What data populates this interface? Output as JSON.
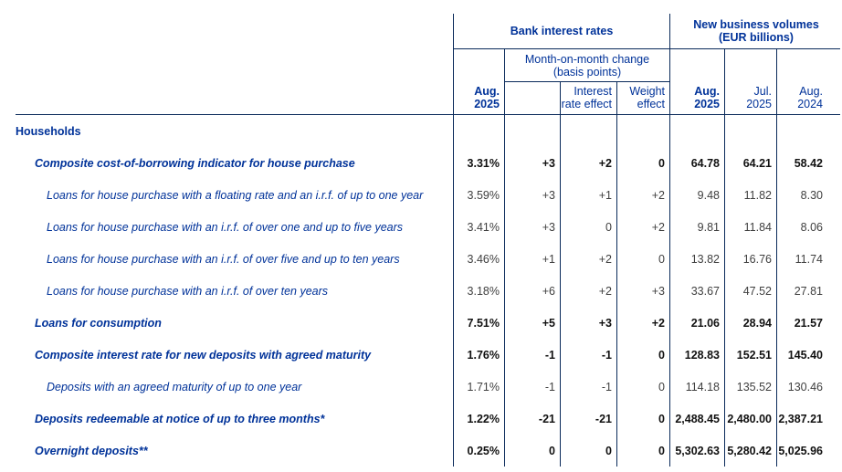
{
  "table": {
    "groups": {
      "bank_rates": "Bank interest rates",
      "volumes_line1": "New business volumes",
      "volumes_line2": "(EUR billions)",
      "mom_line1": "Month-on-month change",
      "mom_line2": "(basis points)"
    },
    "column_headers": {
      "rate_aug25": {
        "line1": "Aug.",
        "line2": "2025"
      },
      "interest_effect": {
        "line1": "Interest",
        "line2": "rate effect"
      },
      "weight_effect": {
        "line1": "Weight",
        "line2": "effect"
      },
      "vol_aug25": {
        "line1": "Aug.",
        "line2": "2025"
      },
      "vol_jul25": {
        "line1": "Jul.",
        "line2": "2025"
      },
      "vol_aug24": {
        "line1": "Aug.",
        "line2": "2024"
      }
    },
    "rows": [
      {
        "label": "Households",
        "indent": 0,
        "value_bold": false,
        "values": []
      },
      {
        "label": "Composite cost-of-borrowing indicator for house purchase",
        "indent": 1,
        "value_bold": true,
        "values": [
          "3.31%",
          "+3",
          "+2",
          "0",
          "64.78",
          "64.21",
          "58.42"
        ]
      },
      {
        "label": "Loans for house purchase with a floating rate and an i.r.f. of up to one year",
        "indent": 2,
        "value_bold": false,
        "values": [
          "3.59%",
          "+3",
          "+1",
          "+2",
          "9.48",
          "11.82",
          "8.30"
        ]
      },
      {
        "label": "Loans for house purchase with an i.r.f. of over one and up to five years",
        "indent": 2,
        "value_bold": false,
        "values": [
          "3.41%",
          "+3",
          "0",
          "+2",
          "9.81",
          "11.84",
          "8.06"
        ]
      },
      {
        "label": "Loans for house purchase with an i.r.f. of over five and up to ten years",
        "indent": 2,
        "value_bold": false,
        "values": [
          "3.46%",
          "+1",
          "+2",
          "0",
          "13.82",
          "16.76",
          "11.74"
        ]
      },
      {
        "label": "Loans for house purchase with an i.r.f. of over ten years",
        "indent": 2,
        "value_bold": false,
        "values": [
          "3.18%",
          "+6",
          "+2",
          "+3",
          "33.67",
          "47.52",
          "27.81"
        ]
      },
      {
        "label": "Loans for consumption",
        "indent": 1,
        "value_bold": true,
        "values": [
          "7.51%",
          "+5",
          "+3",
          "+2",
          "21.06",
          "28.94",
          "21.57"
        ]
      },
      {
        "label": "Composite interest rate for new deposits with agreed maturity",
        "indent": 1,
        "value_bold": true,
        "values": [
          "1.76%",
          "-1",
          "-1",
          "0",
          "128.83",
          "152.51",
          "145.40"
        ]
      },
      {
        "label": "Deposits with an agreed maturity of up to one year",
        "indent": 2,
        "value_bold": false,
        "values": [
          "1.71%",
          "-1",
          "-1",
          "0",
          "114.18",
          "135.52",
          "130.46"
        ]
      },
      {
        "label": "Deposits redeemable at notice of up to three months*",
        "indent": 1,
        "value_bold": true,
        "values": [
          "1.22%",
          "-21",
          "-21",
          "0",
          "2,488.45",
          "2,480.00",
          "2,387.21"
        ]
      },
      {
        "label": "Overnight deposits**",
        "indent": 1,
        "value_bold": true,
        "values": [
          "0.25%",
          "0",
          "0",
          "0",
          "5,302.63",
          "5,280.42",
          "5,025.96"
        ]
      }
    ],
    "colors": {
      "accent_blue": "#003299",
      "border_navy": "#0a2a5a",
      "value_regular": "#3f3f3f",
      "value_bold": "#111111"
    }
  }
}
